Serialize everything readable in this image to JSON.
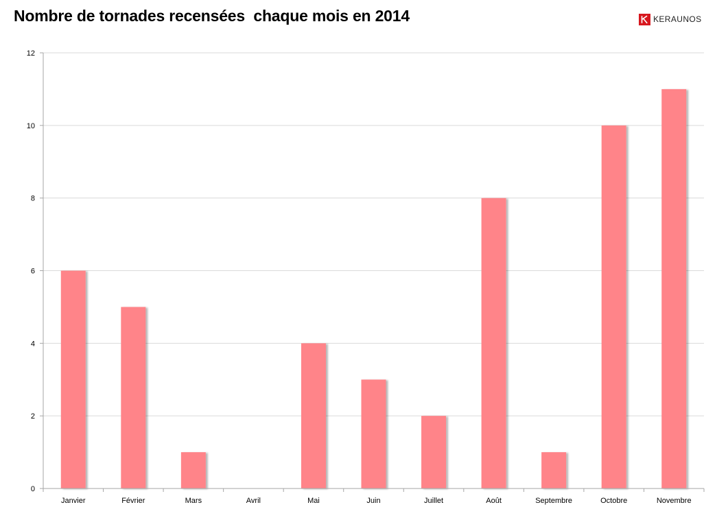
{
  "page": {
    "title": "Nombre de tornades recensées  chaque mois en 2014",
    "brand": {
      "logo_letter": "K",
      "name": "KERAUNOS",
      "color": "#d7181f"
    }
  },
  "chart_data": {
    "type": "bar",
    "title": "Nombre de tornades recensées  chaque mois en 2014",
    "xlabel": "",
    "ylabel": "",
    "categories": [
      "Janvier",
      "Février",
      "Mars",
      "Avril",
      "Mai",
      "Juin",
      "Juillet",
      "Août",
      "Septembre",
      "Octobre",
      "Novembre"
    ],
    "values": [
      6,
      5,
      1,
      0,
      4,
      3,
      2,
      8,
      1,
      10,
      11
    ],
    "ylim": [
      0,
      12
    ],
    "yticks": [
      0,
      2,
      4,
      6,
      8,
      10,
      12
    ],
    "grid": true,
    "legend": "none",
    "bar_color": "#ff8489",
    "grid_color": "#d9d9d9"
  }
}
